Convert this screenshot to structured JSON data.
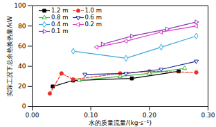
{
  "chart_data": {
    "type": "line",
    "x_label": "水的质量流量/(kg·s⁻¹)",
    "y_label": "实际工况下总余热换热量/kW",
    "xlim": [
      0,
      0.3
    ],
    "xticks": [
      0,
      0.1,
      0.2,
      0.3
    ],
    "ylim": [
      0,
      100
    ],
    "yticks": [
      0,
      20,
      40,
      60,
      80,
      100
    ],
    "grid": false,
    "legend": "upper left",
    "series": [
      {
        "name": "1.2 m",
        "color": "#000000",
        "marker": "square",
        "line_style": "solid",
        "x": [
          0.035,
          0.07,
          0.17,
          0.25
        ],
        "values": [
          20,
          26,
          28,
          35
        ]
      },
      {
        "name": "1.0 m",
        "color": "#e8312a",
        "marker": "circle",
        "line_style": "dashed",
        "x": [
          0.03,
          0.05,
          0.07,
          0.15,
          0.2,
          0.28
        ],
        "values": [
          13,
          33,
          27,
          33,
          35,
          34
        ]
      },
      {
        "name": "0.8 m",
        "color": "#3cb43c",
        "marker": "triangle",
        "line_style": "solid",
        "x": [
          0.08,
          0.15,
          0.2,
          0.26
        ],
        "values": [
          26,
          30,
          33,
          38
        ]
      },
      {
        "name": "0.6 m",
        "color": "#1f2a9c",
        "marker": "triangle-down",
        "line_style": "solid",
        "x": [
          0.09,
          0.16,
          0.22,
          0.28
        ],
        "values": [
          32,
          33,
          37,
          45
        ]
      },
      {
        "name": "0.4 m",
        "color": "#3aa7e0",
        "marker": "diamond",
        "line_style": "solid",
        "x": [
          0.07,
          0.16,
          0.22,
          0.28
        ],
        "values": [
          55,
          48,
          59,
          70
        ]
      },
      {
        "name": "0.2 m",
        "color": "#e03ad0",
        "marker": "triangle-left",
        "line_style": "solid",
        "x": [
          0.11,
          0.16,
          0.22,
          0.28
        ],
        "values": [
          59,
          65,
          74,
          80
        ]
      },
      {
        "name": "0.1 m",
        "color": "#8a3ab0",
        "marker": "triangle-right",
        "line_style": "solid",
        "x": [
          0.12,
          0.17,
          0.23,
          0.28
        ],
        "values": [
          62,
          70,
          77,
          84
        ]
      }
    ]
  }
}
